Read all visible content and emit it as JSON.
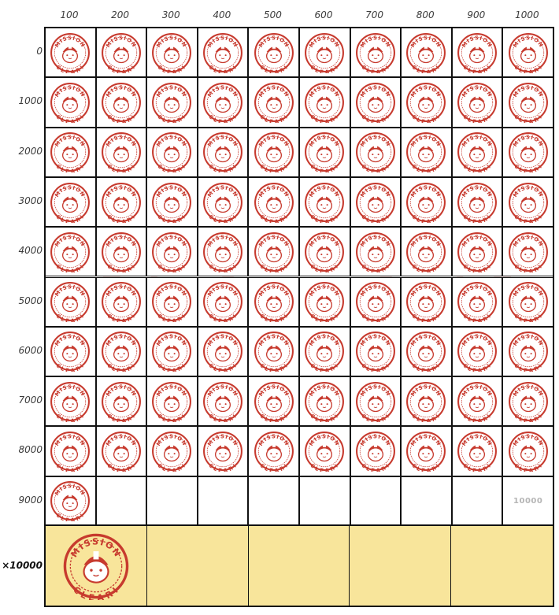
{
  "column_headers": [
    "100",
    "200",
    "300",
    "400",
    "500",
    "600",
    "700",
    "800",
    "900",
    "1000"
  ],
  "row_headers": [
    "0",
    "1000",
    "2000",
    "3000",
    "4000",
    "5000",
    "6000",
    "7000",
    "8000",
    "9000"
  ],
  "multiplier_label": "×10000",
  "empty_cell_label": "10000",
  "stamp": {
    "top_text": "MISSION",
    "bottom_text": "CLEAR!",
    "color": "#c73a2e"
  },
  "bonus_color": "#f8e59b",
  "filled_count": 91,
  "bonus_filled": 1,
  "bonus_cells": 5
}
